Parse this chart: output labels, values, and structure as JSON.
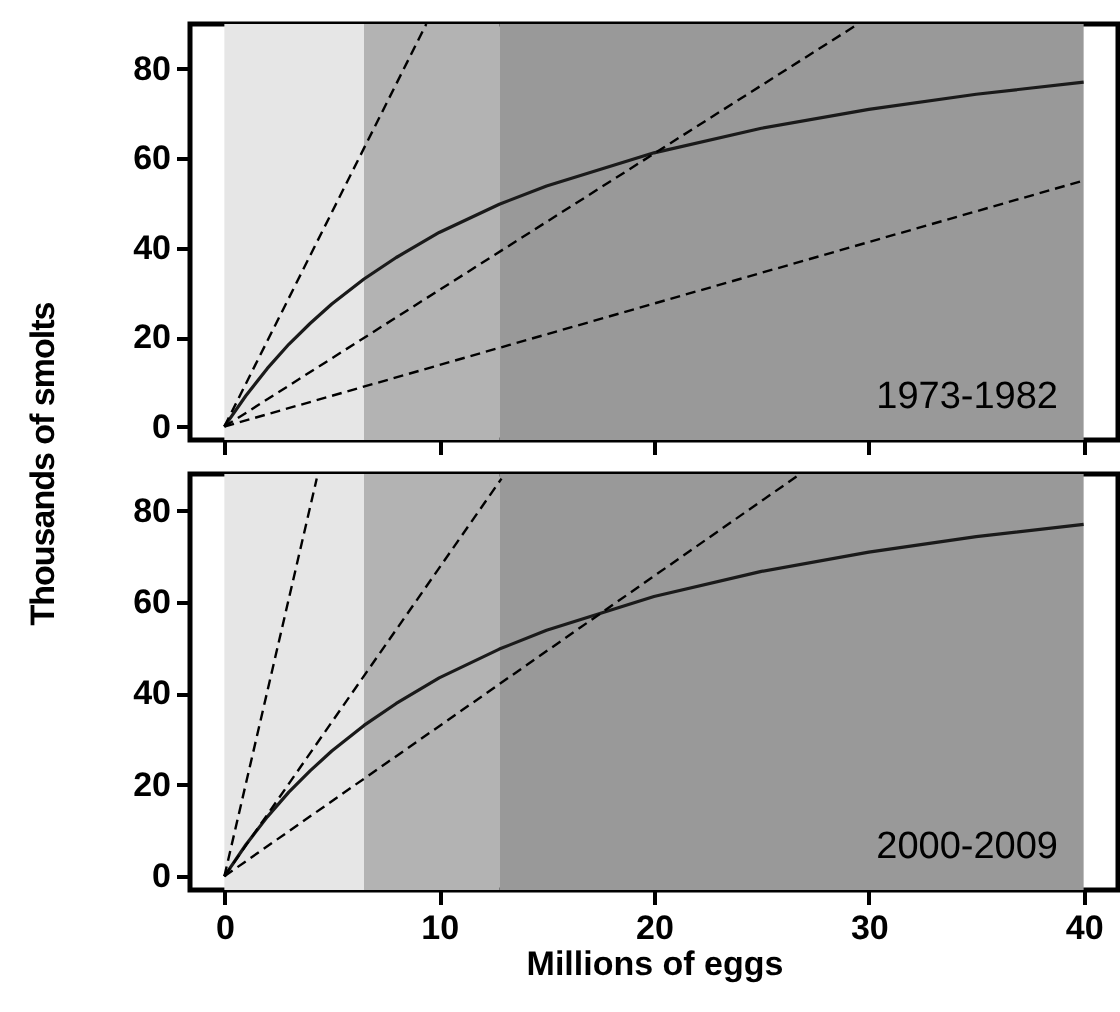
{
  "chart_data": [
    {
      "type": "line",
      "ylabel": "Thousands of smolts",
      "annotations": [
        "1973-1982"
      ],
      "xlim": [
        -1.6,
        41.6
      ],
      "ylim": [
        -3,
        90
      ],
      "xticks": [
        0,
        10,
        20,
        30,
        40
      ],
      "yticks": [
        0,
        20,
        40,
        60,
        80
      ],
      "tick_labels": "y",
      "bands": [
        {
          "axis": "x",
          "from": 0,
          "to": 6.5,
          "color": "#e6e6e6"
        },
        {
          "axis": "x",
          "from": 6.5,
          "to": 12.8,
          "color": "#b3b3b3"
        },
        {
          "axis": "x",
          "from": 12.8,
          "to": 40,
          "color": "#999999"
        }
      ],
      "series": [
        {
          "color": "#1a1a1a",
          "line_style": "solid",
          "x": [
            0,
            1,
            2,
            3,
            4,
            5,
            6.5,
            8,
            10,
            12.8,
            15,
            20,
            25,
            30,
            35,
            40
          ],
          "values": [
            0,
            6.9,
            13,
            18.4,
            23.1,
            27.4,
            33,
            37.8,
            43.4,
            49.7,
            53.8,
            61.2,
            66.7,
            70.9,
            74.3,
            77
          ]
        },
        {
          "color": "#000000",
          "line_style": "dashed",
          "x": [
            0,
            9.4
          ],
          "values": [
            0,
            90
          ]
        },
        {
          "color": "#000000",
          "line_style": "dashed",
          "x": [
            0,
            29.5
          ],
          "values": [
            0,
            90
          ]
        },
        {
          "color": "#000000",
          "line_style": "dashed",
          "x": [
            0,
            40
          ],
          "values": [
            0,
            55
          ]
        }
      ]
    },
    {
      "type": "line",
      "xlabel": "Millions of eggs",
      "annotations": [
        "2000-2009"
      ],
      "xlim": [
        -1.6,
        41.6
      ],
      "ylim": [
        -3,
        88
      ],
      "xticks": [
        0,
        10,
        20,
        30,
        40
      ],
      "yticks": [
        0,
        20,
        40,
        60,
        80
      ],
      "bands": [
        {
          "axis": "x",
          "from": 0,
          "to": 6.5,
          "color": "#e6e6e6"
        },
        {
          "axis": "x",
          "from": 6.5,
          "to": 12.8,
          "color": "#b3b3b3"
        },
        {
          "axis": "x",
          "from": 12.8,
          "to": 40,
          "color": "#999999"
        }
      ],
      "series": [
        {
          "color": "#1a1a1a",
          "line_style": "solid",
          "x": [
            0,
            1,
            2,
            3,
            4,
            5,
            6.5,
            8,
            10,
            12.8,
            15,
            20,
            25,
            30,
            35,
            40
          ],
          "values": [
            0,
            6.9,
            13,
            18.4,
            23.1,
            27.4,
            33,
            37.8,
            43.4,
            49.7,
            53.8,
            61.2,
            66.7,
            70.9,
            74.3,
            77
          ]
        },
        {
          "color": "#000000",
          "line_style": "dashed",
          "x": [
            0,
            4.3
          ],
          "values": [
            0,
            87
          ]
        },
        {
          "color": "#000000",
          "line_style": "dashed",
          "x": [
            0,
            12.9
          ],
          "values": [
            0,
            87
          ]
        },
        {
          "color": "#000000",
          "line_style": "dashed",
          "x": [
            0,
            26.8
          ],
          "values": [
            0,
            88
          ]
        }
      ]
    }
  ]
}
